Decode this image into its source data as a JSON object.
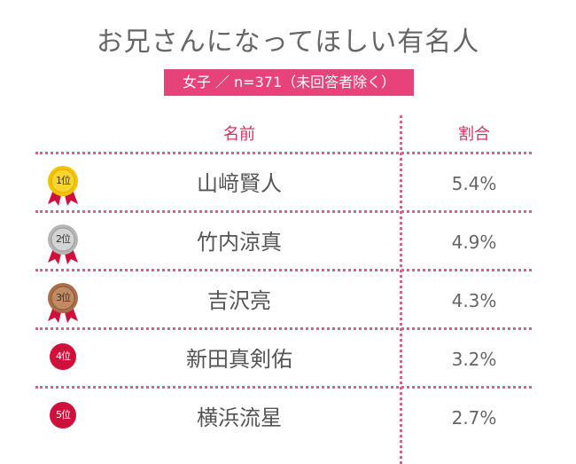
{
  "title": "お兄さんになってほしい有名人",
  "subtitle": "女子 ／ n=371（未回答者除く）",
  "headers": {
    "name": "名前",
    "ratio": "割合"
  },
  "colors": {
    "accent": "#e7427a",
    "header_text": "#d6325f",
    "gold": "#f3c300",
    "silver": "#b5b5b5",
    "bronze": "#a86f48",
    "red_badge": "#d0103a"
  },
  "chart_data": {
    "type": "table",
    "title": "お兄さんになってほしい有名人",
    "subtitle": "女子 ／ n=371（未回答者除く）",
    "columns": [
      "名前",
      "割合"
    ],
    "rows": [
      {
        "rank": "1位",
        "name": "山﨑賢人",
        "value_label": "5.4%",
        "value": 5.4,
        "badge": "gold-medal-icon"
      },
      {
        "rank": "2位",
        "name": "竹内涼真",
        "value_label": "4.9%",
        "value": 4.9,
        "badge": "silver-medal-icon"
      },
      {
        "rank": "3位",
        "name": "吉沢亮",
        "value_label": "4.3%",
        "value": 4.3,
        "badge": "bronze-medal-icon"
      },
      {
        "rank": "4位",
        "name": "新田真剣佑",
        "value_label": "3.2%",
        "value": 3.2,
        "badge": "red-circle-icon"
      },
      {
        "rank": "5位",
        "name": "横浜流星",
        "value_label": "2.7%",
        "value": 2.7,
        "badge": "red-circle-icon"
      }
    ]
  }
}
